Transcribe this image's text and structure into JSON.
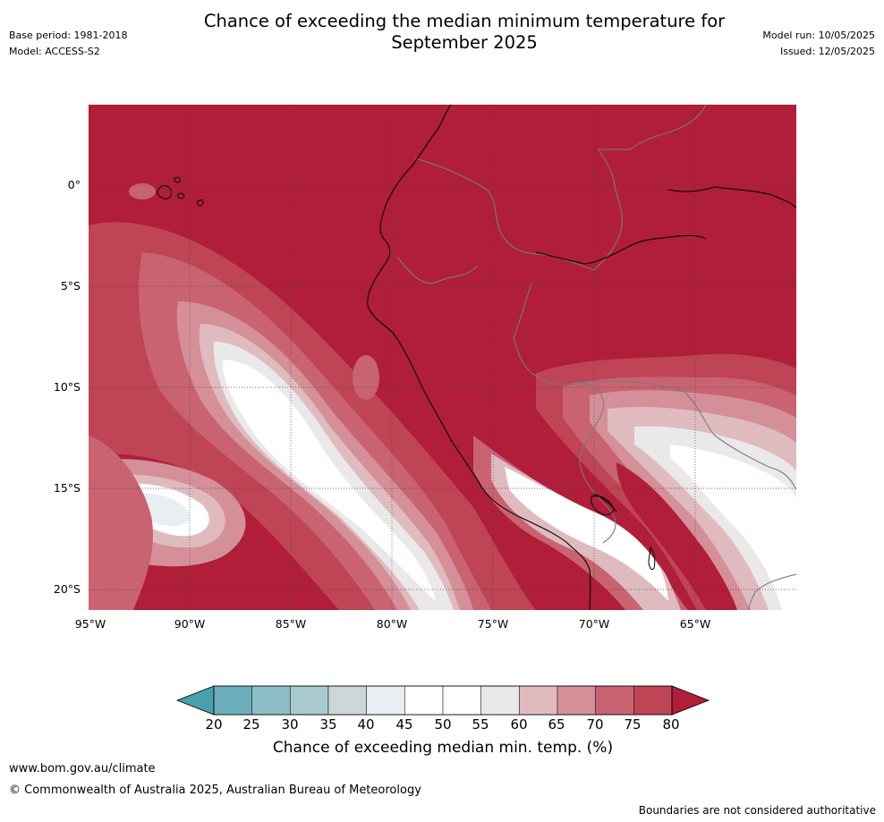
{
  "header": {
    "title_line1": "Chance of exceeding the median minimum temperature for",
    "title_line2": "September 2025",
    "base_period": "Base period: 1981-2018",
    "model": "Model: ACCESS-S2",
    "model_run": "Model run: 10/05/2025",
    "issued": "Issued: 12/05/2025"
  },
  "map": {
    "lat_labels": [
      "0°",
      "5°S",
      "10°S",
      "15°S",
      "20°S"
    ],
    "lon_labels": [
      "95°W",
      "90°W",
      "85°W",
      "80°W",
      "75°W",
      "70°W",
      "65°W"
    ],
    "background_color": "#b01e3a"
  },
  "colorbar": {
    "ticks": [
      "20",
      "25",
      "30",
      "35",
      "40",
      "45",
      "50",
      "55",
      "60",
      "65",
      "70",
      "75",
      "80"
    ],
    "label": "Chance of exceeding median min. temp. (%)",
    "low_extend_color": "#4aa0ad",
    "high_extend_color": "#b01e3a",
    "bins": [
      {
        "range": "20-25",
        "color": "#6aafbb"
      },
      {
        "range": "25-30",
        "color": "#8cbcc6"
      },
      {
        "range": "30-35",
        "color": "#a8c9cf"
      },
      {
        "range": "35-40",
        "color": "#cfd6da"
      },
      {
        "range": "40-45",
        "color": "#e8eef1"
      },
      {
        "range": "45-50",
        "color": "#ffffff"
      },
      {
        "range": "50-55",
        "color": "#ffffff"
      },
      {
        "range": "55-60",
        "color": "#ebe8ea"
      },
      {
        "range": "60-65",
        "color": "#dfbbc0"
      },
      {
        "range": "65-70",
        "color": "#d58f98"
      },
      {
        "range": "70-75",
        "color": "#c96371"
      },
      {
        "range": "75-80",
        "color": "#bf4455"
      }
    ]
  },
  "footer": {
    "url": "www.bom.gov.au/climate",
    "copyright": "© Commonwealth of Australia 2025, Australian Bureau of Meteorology",
    "disclaimer": "Boundaries are not considered authoritative"
  }
}
